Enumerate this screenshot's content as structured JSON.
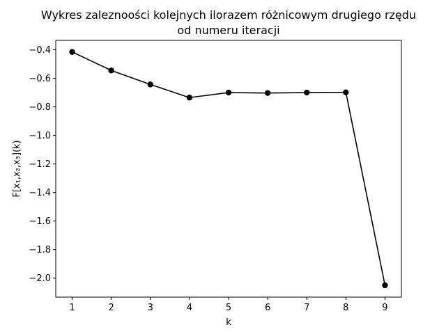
{
  "chart_data": {
    "type": "line",
    "title": [
      "Wykres zaleznoości kolejnych ilorazem różnicowym drugiego rzędu",
      "od numeru iteracji"
    ],
    "xlabel": "k",
    "ylabel": "F[x₁,x₂,x₃](k)",
    "x": [
      1,
      2,
      3,
      4,
      5,
      6,
      7,
      8,
      9
    ],
    "series": [
      {
        "values": [
          -0.415,
          -0.545,
          -0.643,
          -0.735,
          -0.7,
          -0.703,
          -0.7,
          -0.698,
          -2.05
        ]
      }
    ],
    "xlim": [
      0.58,
      9.42
    ],
    "ylim": [
      -2.133,
      -0.334
    ],
    "xticks": [
      1,
      2,
      3,
      4,
      5,
      6,
      7,
      8,
      9
    ],
    "xtick_labels": [
      "1",
      "2",
      "3",
      "4",
      "5",
      "6",
      "7",
      "8",
      "9"
    ],
    "yticks": [
      -0.4,
      -0.6,
      -0.8,
      -1.0,
      -1.2,
      -1.4,
      -1.6,
      -1.8,
      -2.0
    ],
    "ytick_labels": [
      "−0.4",
      "−0.6",
      "−0.8",
      "−1.0",
      "−1.2",
      "−1.4",
      "−1.6",
      "−1.8",
      "−2.0"
    ],
    "grid": false,
    "line_color": "#000000",
    "marker": "circle"
  }
}
